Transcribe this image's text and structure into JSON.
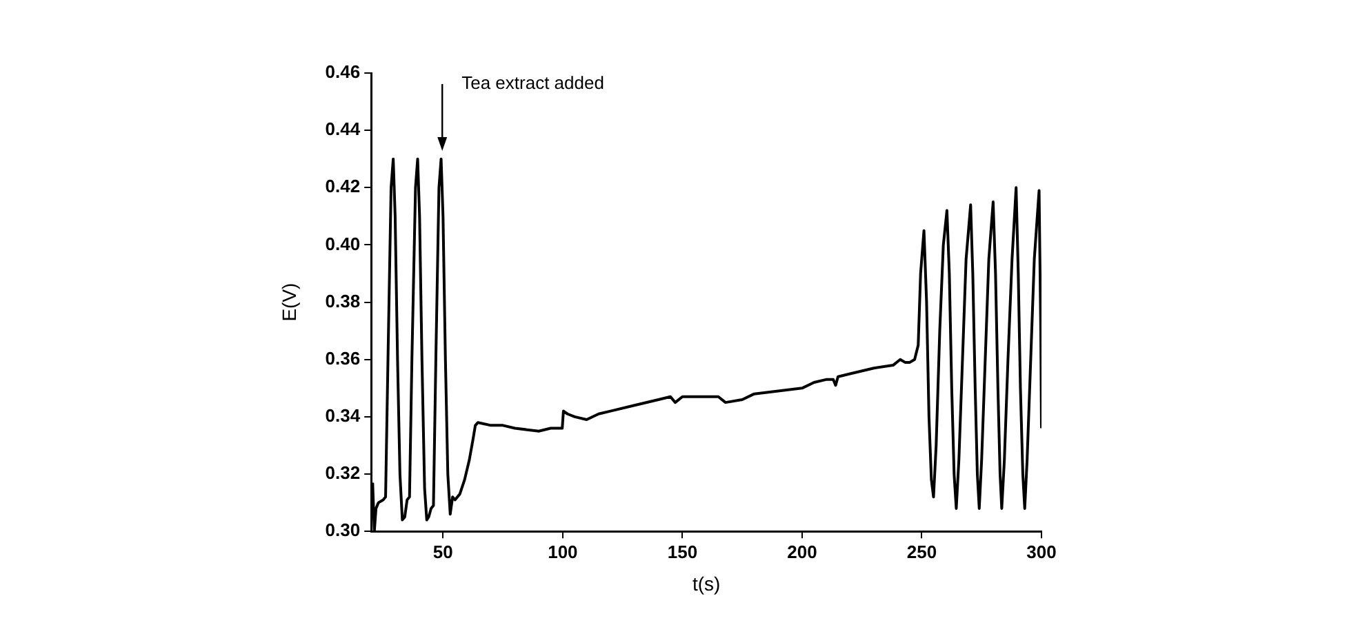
{
  "chart_data": {
    "type": "line",
    "xlabel": "t(s)",
    "ylabel": "E(V)",
    "xlim": [
      20,
      300
    ],
    "xticks": [
      50,
      100,
      150,
      200,
      250,
      300
    ],
    "ylim": [
      0.3,
      0.46
    ],
    "yticks": [
      {
        "value": 0.3,
        "label": "0.30"
      },
      {
        "value": 0.32,
        "label": "0.32"
      },
      {
        "value": 0.34,
        "label": "0.34"
      },
      {
        "value": 0.36,
        "label": "0.36"
      },
      {
        "value": 0.38,
        "label": "0.38"
      },
      {
        "value": 0.4,
        "label": "0.40"
      },
      {
        "value": 0.42,
        "label": "0.42"
      },
      {
        "value": 0.44,
        "label": "0.44"
      },
      {
        "value": 0.46,
        "label": "0.46"
      }
    ],
    "grid": false,
    "legend": false,
    "marker": "none",
    "line_style": "solid",
    "annotations": [
      "Tea extract added"
    ],
    "series": [
      {
        "color": "#000000",
        "x": [
          20.6,
          21.3,
          22,
          23,
          25,
          26,
          27,
          28.3,
          29.2,
          30,
          31,
          32,
          33,
          34,
          35,
          36,
          37,
          38.5,
          39.4,
          40.2,
          41.2,
          42.3,
          43.2,
          44,
          45,
          46,
          47,
          48.3,
          49.2,
          50,
          51,
          52,
          53,
          54,
          55,
          57,
          59,
          61,
          62.5,
          63.5,
          64.6,
          70,
          75,
          80,
          90,
          95,
          99.8,
          100.3,
          102,
          105,
          110,
          115,
          120,
          130,
          140,
          145,
          147,
          150,
          160,
          165,
          168,
          175,
          180,
          190,
          200,
          205,
          210,
          213,
          214,
          215,
          220,
          230,
          238,
          241,
          243,
          245,
          247,
          248.5,
          249.5,
          250.9,
          252,
          253,
          254,
          254.9,
          256,
          257.5,
          259,
          260.5,
          261.5,
          262.5,
          263.5,
          264.4,
          265.5,
          267,
          268.5,
          270.4,
          271.3,
          272.3,
          273.2,
          274,
          275,
          276.5,
          278,
          279.8,
          280.8,
          281.8,
          282.7,
          283.4,
          284.5,
          286,
          287.7,
          289.4,
          290.3,
          291.2,
          292.2,
          293,
          294,
          295.5,
          297,
          299,
          299.7,
          300
        ],
        "values": [
          0.317,
          0.3,
          0.308,
          0.31,
          0.311,
          0.312,
          0.36,
          0.42,
          0.43,
          0.41,
          0.36,
          0.32,
          0.304,
          0.305,
          0.311,
          0.312,
          0.36,
          0.42,
          0.43,
          0.41,
          0.36,
          0.315,
          0.304,
          0.305,
          0.308,
          0.309,
          0.36,
          0.42,
          0.43,
          0.41,
          0.36,
          0.32,
          0.306,
          0.312,
          0.311,
          0.313,
          0.318,
          0.325,
          0.332,
          0.337,
          0.338,
          0.337,
          0.337,
          0.336,
          0.335,
          0.336,
          0.336,
          0.342,
          0.341,
          0.34,
          0.339,
          0.341,
          0.342,
          0.344,
          0.346,
          0.347,
          0.345,
          0.347,
          0.347,
          0.347,
          0.345,
          0.346,
          0.348,
          0.349,
          0.35,
          0.352,
          0.353,
          0.353,
          0.351,
          0.354,
          0.355,
          0.357,
          0.358,
          0.36,
          0.359,
          0.359,
          0.36,
          0.365,
          0.39,
          0.405,
          0.38,
          0.34,
          0.318,
          0.312,
          0.33,
          0.37,
          0.4,
          0.412,
          0.39,
          0.35,
          0.32,
          0.308,
          0.325,
          0.36,
          0.395,
          0.414,
          0.39,
          0.35,
          0.32,
          0.308,
          0.325,
          0.36,
          0.395,
          0.415,
          0.39,
          0.35,
          0.32,
          0.308,
          0.325,
          0.36,
          0.395,
          0.42,
          0.39,
          0.35,
          0.32,
          0.308,
          0.325,
          0.36,
          0.395,
          0.419,
          0.37,
          0.336
        ]
      }
    ]
  }
}
